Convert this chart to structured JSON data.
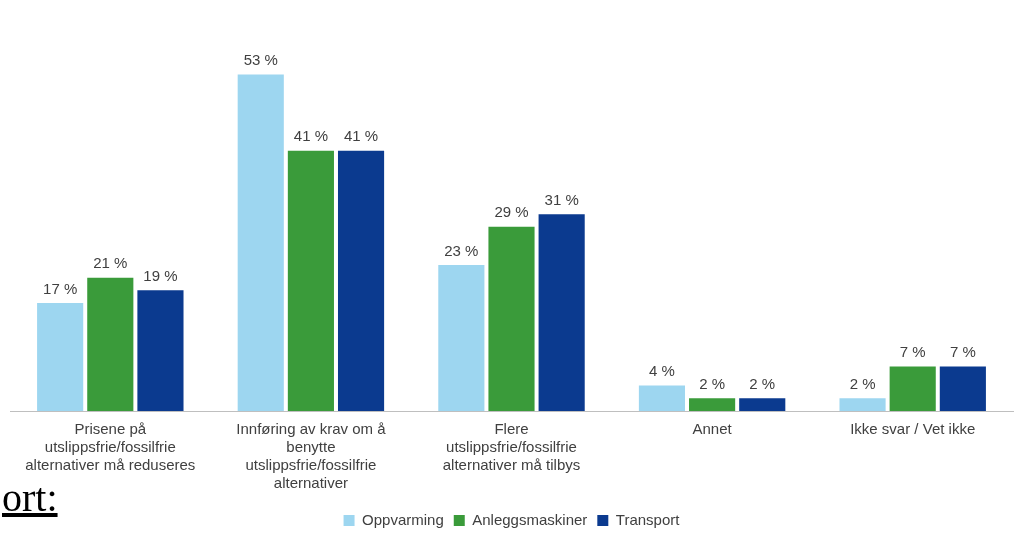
{
  "chart_data": {
    "type": "bar",
    "categories": [
      "Prisene på utslippsfrie/fossilfrie alternativer må reduseres",
      "Innføring av krav om å benytte utslippsfrie/fossilfrie alternativer",
      "Flere utslippsfrie/fossilfrie alternativer må tilbys",
      "Annet",
      "Ikke svar / Vet ikke"
    ],
    "series": [
      {
        "name": "Oppvarming",
        "color": "#9dd6f0",
        "values": [
          17,
          53,
          23,
          4,
          2
        ],
        "value_labels": [
          "17 %",
          "53 %",
          "23 %",
          "4 %",
          "2 %"
        ]
      },
      {
        "name": "Anleggsmaskiner",
        "color": "#3a9b3a",
        "values": [
          21,
          41,
          29,
          2,
          7
        ],
        "value_labels": [
          "21 %",
          "41 %",
          "29 %",
          "2 %",
          "7 %"
        ]
      },
      {
        "name": "Transport",
        "color": "#0b3a8f",
        "values": [
          19,
          41,
          31,
          2,
          7
        ],
        "value_labels": [
          "19 %",
          "41 %",
          "31 %",
          "2 %",
          "7 %"
        ]
      }
    ],
    "legend": "bottom",
    "grid": false,
    "annotations": [
      "ort:"
    ]
  }
}
